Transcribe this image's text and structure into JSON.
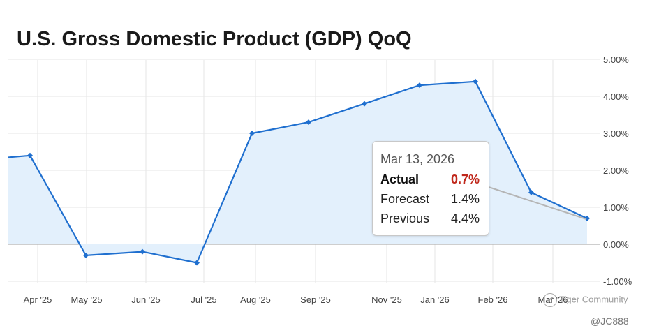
{
  "chart_data": {
    "type": "area",
    "title": "U.S. Gross Domestic Product (GDP) QoQ",
    "xlabel": "",
    "ylabel": "",
    "y_unit": "%",
    "ylim": [
      -1.0,
      5.0
    ],
    "y_ticks": [
      5.0,
      4.0,
      3.0,
      2.0,
      1.0,
      0.0,
      -1.0
    ],
    "y_tick_labels": [
      "5.00%",
      "4.00%",
      "3.00%",
      "2.00%",
      "1.00%",
      "0.00%",
      "-1.00%"
    ],
    "y_axis_position": "right",
    "x_tick_labels": [
      "Apr '25",
      "May '25",
      "Jun '25",
      "Jul '25",
      "Aug '25",
      "Sep '25",
      "Nov '25",
      "Jan '26",
      "Feb '26",
      "Mar '26"
    ],
    "grid": true,
    "line_color": "#1f6fcf",
    "fill_color": "#e3f0fc",
    "series": [
      {
        "values": [
          2.35,
          2.4,
          -0.3,
          -0.2,
          -0.5,
          3.0,
          3.3,
          3.8,
          4.3,
          4.4,
          1.4,
          0.7
        ]
      }
    ],
    "tooltip": {
      "date": "Mar 13, 2026",
      "actual_label": "Actual",
      "actual_value": "0.7%",
      "forecast_label": "Forecast",
      "forecast_value": "1.4%",
      "previous_label": "Previous",
      "previous_value": "4.4%",
      "actual_color": "#c0281c"
    }
  },
  "watermark": {
    "text": "Tiger Community",
    "handle": "@JC888"
  }
}
